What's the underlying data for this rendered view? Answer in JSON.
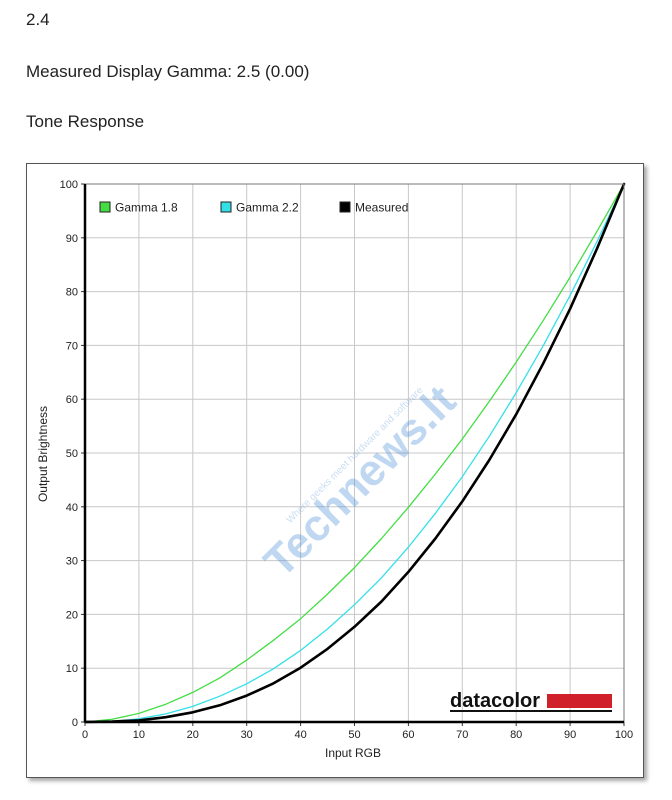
{
  "header": {
    "version": "2.4",
    "measured_gamma": "Measured Display Gamma: 2.5 (0.00)",
    "section_title": "Tone Response"
  },
  "watermark": {
    "brand": "Technews.lt",
    "tagline": "Where geeks meet hardware and software"
  },
  "logo": {
    "text": "datacolor",
    "bar_color": "#d0202a"
  },
  "colors": {
    "gamma18": "#44dd44",
    "gamma22": "#33e0e8",
    "measured": "#000000",
    "grid": "#c8c8c8"
  },
  "chart_data": {
    "type": "line",
    "title": "",
    "xlabel": "Input RGB",
    "ylabel": "Output Brightness",
    "xlim": [
      0,
      100
    ],
    "ylim": [
      0,
      100
    ],
    "xticks": [
      "0",
      "10",
      "20",
      "30",
      "40",
      "50",
      "60",
      "70",
      "80",
      "90",
      "100"
    ],
    "yticks": [
      "0",
      "10",
      "20",
      "30",
      "40",
      "50",
      "60",
      "70",
      "80",
      "90",
      "100"
    ],
    "grid": true,
    "legend_position": "top-left",
    "x": [
      0,
      5,
      10,
      15,
      20,
      25,
      30,
      35,
      40,
      45,
      50,
      55,
      60,
      65,
      70,
      75,
      80,
      85,
      90,
      95,
      100
    ],
    "series": [
      {
        "name": "Gamma 1.8",
        "color": "#44dd44",
        "values": [
          0,
          0.5,
          1.6,
          3.3,
          5.5,
          8.2,
          11.5,
          15.2,
          19.2,
          23.8,
          28.7,
          34.1,
          39.9,
          46.1,
          52.6,
          59.6,
          66.9,
          74.6,
          82.7,
          91.2,
          100
        ]
      },
      {
        "name": "Gamma 2.2",
        "color": "#33e0e8",
        "values": [
          0,
          0.1,
          0.6,
          1.5,
          2.9,
          4.8,
          7.1,
          9.9,
          13.3,
          17.3,
          21.8,
          26.8,
          32.5,
          38.8,
          45.6,
          53.1,
          61.2,
          69.9,
          79.3,
          89.3,
          100
        ]
      },
      {
        "name": "Measured",
        "color": "#000000",
        "values": [
          0,
          0.1,
          0.3,
          0.9,
          1.8,
          3.1,
          4.9,
          7.2,
          10.1,
          13.6,
          17.7,
          22.4,
          27.9,
          34.1,
          41.0,
          48.7,
          57.2,
          66.6,
          76.8,
          88.0,
          100
        ]
      }
    ]
  }
}
